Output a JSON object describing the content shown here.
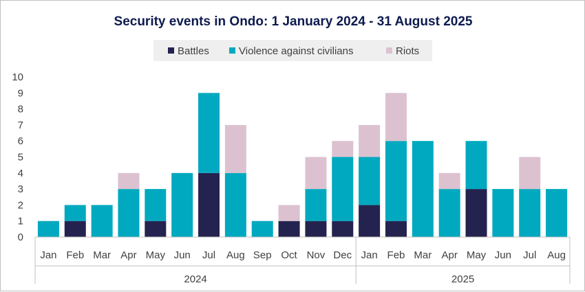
{
  "chart_data": {
    "type": "bar",
    "stacked": true,
    "title": "Security events in Ondo: 1 January 2024 - 31 August 2025",
    "categories": [
      "Jan",
      "Feb",
      "Mar",
      "Apr",
      "May",
      "Jun",
      "Jul",
      "Aug",
      "Sep",
      "Oct",
      "Nov",
      "Dec",
      "Jan",
      "Feb",
      "Mar",
      "Apr",
      "May",
      "Jun",
      "Jul",
      "Aug"
    ],
    "groups": [
      {
        "label": "2024",
        "count": 12
      },
      {
        "label": "2025",
        "count": 8
      }
    ],
    "series": [
      {
        "name": "Battles",
        "color": "#24234f",
        "values": [
          0,
          1,
          0,
          0,
          1,
          0,
          4,
          0,
          0,
          1,
          1,
          1,
          2,
          1,
          0,
          0,
          3,
          0,
          0,
          0
        ]
      },
      {
        "name": "Violence against civilians",
        "color": "#00a9bf",
        "values": [
          1,
          1,
          2,
          3,
          2,
          4,
          5,
          4,
          1,
          0,
          2,
          4,
          3,
          5,
          6,
          3,
          3,
          3,
          3,
          3
        ]
      },
      {
        "name": "Riots",
        "color": "#dcc2d0",
        "values": [
          0,
          0,
          0,
          1,
          0,
          0,
          0,
          3,
          0,
          1,
          2,
          1,
          2,
          3,
          0,
          1,
          0,
          0,
          2,
          0
        ]
      }
    ],
    "ylim": [
      0,
      10
    ],
    "yticks": [
      "0",
      "1",
      "2",
      "3",
      "4",
      "5",
      "6",
      "7",
      "8",
      "9",
      "10"
    ],
    "xlabel": "",
    "ylabel": "",
    "legend_position": "top-center",
    "grid": false
  }
}
